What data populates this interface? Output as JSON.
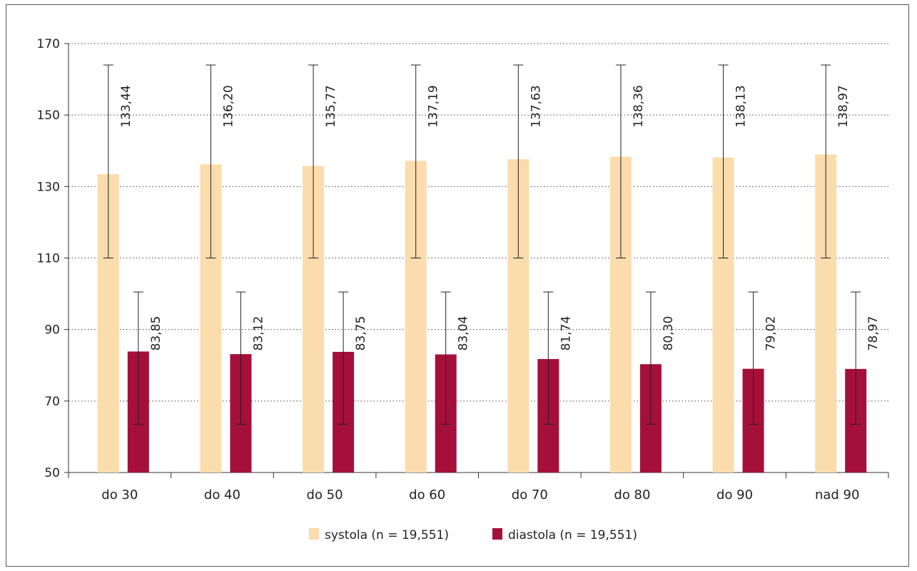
{
  "chart_data": {
    "type": "bar",
    "title": "",
    "xlabel": "",
    "ylabel": "",
    "ylim": [
      50,
      170
    ],
    "yticks": [
      50,
      70,
      90,
      110,
      130,
      150,
      170
    ],
    "grid": "horizontal-dotted",
    "legend_position": "bottom",
    "categories": [
      "do 30",
      "do 40",
      "do 50",
      "do 60",
      "do 70",
      "do 80",
      "do 90",
      "nad 90"
    ],
    "series": [
      {
        "name": "systola (n = 19,551)",
        "color": "#fbdcac",
        "values": [
          133.44,
          136.2,
          135.77,
          137.19,
          137.63,
          138.36,
          138.13,
          138.97
        ],
        "labels": [
          "133,44",
          "136,20",
          "135,77",
          "137,19",
          "137,63",
          "138,36",
          "138,13",
          "138,97"
        ],
        "error_low": [
          110,
          110,
          110,
          110,
          110,
          110,
          110,
          110
        ],
        "error_high": [
          164,
          164,
          164,
          164,
          164,
          164,
          164,
          164
        ]
      },
      {
        "name": "diastola (n = 19,551)",
        "color": "#a5103a",
        "values": [
          83.85,
          83.12,
          83.75,
          83.04,
          81.74,
          80.3,
          79.02,
          78.97
        ],
        "labels": [
          "83,85",
          "83,12",
          "83,75",
          "83,04",
          "81,74",
          "80,30",
          "79,02",
          "78,97"
        ],
        "error_low": [
          63.5,
          63.5,
          63.5,
          63.5,
          63.5,
          63.5,
          63.5,
          63.5
        ],
        "error_high": [
          100.5,
          100.5,
          100.5,
          100.5,
          100.5,
          100.5,
          100.5,
          100.5
        ]
      }
    ]
  }
}
